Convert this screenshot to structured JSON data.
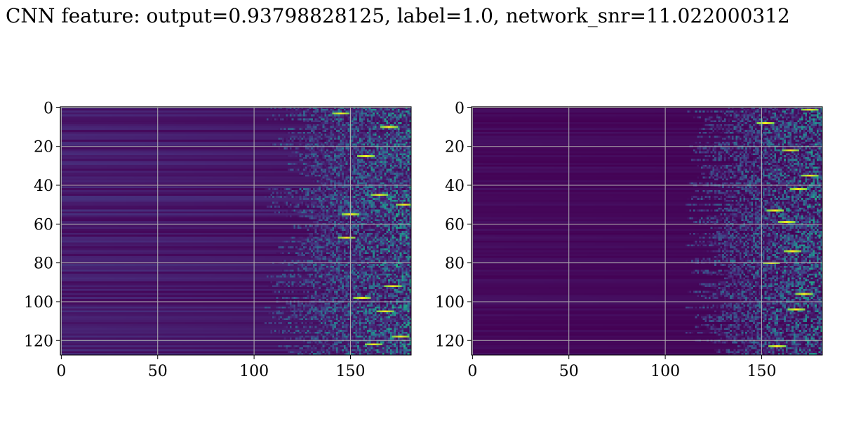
{
  "figure": {
    "title": "CNN feature: output=0.93798828125, label=1.0, network_snr=11.022000312"
  },
  "chart_data": [
    {
      "type": "heatmap",
      "title": "",
      "xlabel": "",
      "ylabel": "",
      "colormap": "viridis",
      "rows": 128,
      "cols": 182,
      "xlim": [
        0,
        181
      ],
      "ylim": [
        127,
        0
      ],
      "y_axis_inverted": true,
      "xticks": [
        0,
        50,
        100,
        150
      ],
      "yticks": [
        0,
        20,
        40,
        60,
        80,
        100,
        120
      ],
      "grid": true,
      "grid_color": "#b0b0b0",
      "activation_onset_col": 120,
      "bright_streaks": [
        {
          "row": 3,
          "col": 145
        },
        {
          "row": 10,
          "col": 170
        },
        {
          "row": 25,
          "col": 158
        },
        {
          "row": 45,
          "col": 165
        },
        {
          "row": 50,
          "col": 178
        },
        {
          "row": 55,
          "col": 150
        },
        {
          "row": 67,
          "col": 148
        },
        {
          "row": 92,
          "col": 172
        },
        {
          "row": 98,
          "col": 156
        },
        {
          "row": 105,
          "col": 168
        },
        {
          "row": 118,
          "col": 176
        },
        {
          "row": 122,
          "col": 162
        }
      ]
    },
    {
      "type": "heatmap",
      "title": "",
      "xlabel": "",
      "ylabel": "",
      "colormap": "viridis",
      "rows": 128,
      "cols": 182,
      "xlim": [
        0,
        181
      ],
      "ylim": [
        127,
        0
      ],
      "y_axis_inverted": true,
      "xticks": [
        0,
        50,
        100,
        150
      ],
      "yticks": [
        0,
        20,
        40,
        60,
        80,
        100,
        120
      ],
      "grid": true,
      "grid_color": "#b0b0b0",
      "activation_onset_col": 125,
      "bright_streaks": [
        {
          "row": 1,
          "col": 175
        },
        {
          "row": 8,
          "col": 152
        },
        {
          "row": 22,
          "col": 165
        },
        {
          "row": 35,
          "col": 175
        },
        {
          "row": 42,
          "col": 169
        },
        {
          "row": 53,
          "col": 157
        },
        {
          "row": 59,
          "col": 163
        },
        {
          "row": 74,
          "col": 166
        },
        {
          "row": 80,
          "col": 155
        },
        {
          "row": 96,
          "col": 172
        },
        {
          "row": 104,
          "col": 168
        },
        {
          "row": 123,
          "col": 158
        }
      ]
    }
  ]
}
